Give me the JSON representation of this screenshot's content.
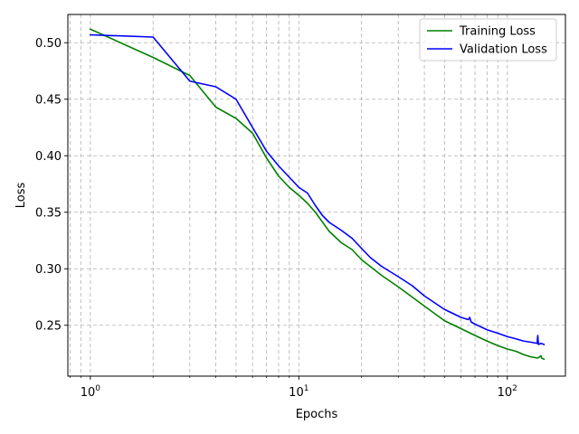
{
  "chart_data": {
    "type": "line",
    "xlabel": "Epochs",
    "ylabel": "Loss",
    "xscale": "log",
    "xlim": [
      0.78,
      190
    ],
    "ylim": [
      0.205,
      0.525
    ],
    "grid": true,
    "grid_which": "both",
    "legend_position": "top-right",
    "x_ticks": [
      {
        "value": 1,
        "base": "10",
        "exp": "0"
      },
      {
        "value": 10,
        "base": "10",
        "exp": "1"
      },
      {
        "value": 100,
        "base": "10",
        "exp": "2"
      }
    ],
    "y_ticks": [
      {
        "value": 0.25,
        "label": "0.25"
      },
      {
        "value": 0.3,
        "label": "0.30"
      },
      {
        "value": 0.35,
        "label": "0.35"
      },
      {
        "value": 0.4,
        "label": "0.40"
      },
      {
        "value": 0.45,
        "label": "0.45"
      },
      {
        "value": 0.5,
        "label": "0.50"
      }
    ],
    "series": [
      {
        "name": "Training Loss",
        "color": "#008000",
        "points": [
          [
            1,
            0.512
          ],
          [
            2,
            0.487
          ],
          [
            3,
            0.471
          ],
          [
            4,
            0.443
          ],
          [
            5,
            0.433
          ],
          [
            6,
            0.42
          ],
          [
            7,
            0.398
          ],
          [
            8,
            0.382
          ],
          [
            9,
            0.372
          ],
          [
            10,
            0.365
          ],
          [
            11,
            0.358
          ],
          [
            12,
            0.35
          ],
          [
            14,
            0.333
          ],
          [
            16,
            0.323
          ],
          [
            18,
            0.317
          ],
          [
            20,
            0.308
          ],
          [
            25,
            0.294
          ],
          [
            30,
            0.284
          ],
          [
            40,
            0.267
          ],
          [
            50,
            0.254
          ],
          [
            60,
            0.247
          ],
          [
            70,
            0.241
          ],
          [
            80,
            0.236
          ],
          [
            90,
            0.232
          ],
          [
            100,
            0.229
          ],
          [
            110,
            0.227
          ],
          [
            120,
            0.224
          ],
          [
            130,
            0.222
          ],
          [
            140,
            0.221
          ],
          [
            145,
            0.223
          ],
          [
            146,
            0.221
          ],
          [
            150,
            0.22
          ]
        ]
      },
      {
        "name": "Validation Loss",
        "color": "#0000ff",
        "points": [
          [
            1,
            0.507
          ],
          [
            2,
            0.505
          ],
          [
            3,
            0.466
          ],
          [
            4,
            0.461
          ],
          [
            5,
            0.45
          ],
          [
            6,
            0.425
          ],
          [
            7,
            0.404
          ],
          [
            8,
            0.391
          ],
          [
            9,
            0.381
          ],
          [
            10,
            0.372
          ],
          [
            11,
            0.367
          ],
          [
            12,
            0.356
          ],
          [
            13,
            0.347
          ],
          [
            14,
            0.341
          ],
          [
            16,
            0.334
          ],
          [
            18,
            0.327
          ],
          [
            20,
            0.318
          ],
          [
            22,
            0.31
          ],
          [
            25,
            0.302
          ],
          [
            30,
            0.293
          ],
          [
            35,
            0.285
          ],
          [
            40,
            0.276
          ],
          [
            50,
            0.264
          ],
          [
            60,
            0.257
          ],
          [
            65,
            0.255
          ],
          [
            66,
            0.257
          ],
          [
            67,
            0.253
          ],
          [
            70,
            0.251
          ],
          [
            80,
            0.246
          ],
          [
            90,
            0.243
          ],
          [
            100,
            0.24
          ],
          [
            110,
            0.238
          ],
          [
            120,
            0.236
          ],
          [
            130,
            0.235
          ],
          [
            139,
            0.234
          ],
          [
            140,
            0.241
          ],
          [
            141,
            0.233
          ],
          [
            145,
            0.234
          ],
          [
            150,
            0.233
          ]
        ]
      }
    ]
  }
}
